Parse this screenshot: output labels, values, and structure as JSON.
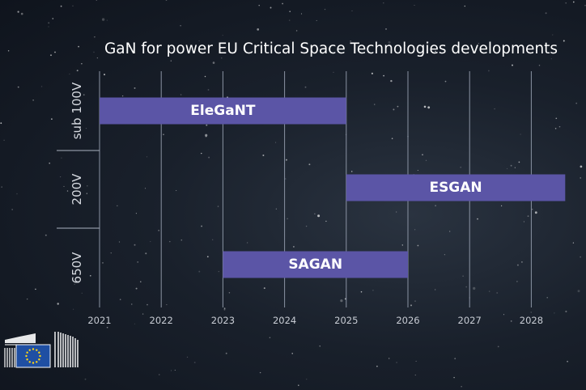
{
  "chart_data": {
    "type": "gantt",
    "title": "GaN for power EU Critical Space Technologies developments",
    "x_ticks": [
      "2021",
      "2022",
      "2023",
      "2024",
      "2025",
      "2026",
      "2027",
      "2028"
    ],
    "xlim": [
      2021,
      2028.55
    ],
    "rows": [
      "sub 100V",
      "200V",
      "650V"
    ],
    "bars": [
      {
        "label": "EleGaNT",
        "row": "sub 100V",
        "start": 2021,
        "end": 2025
      },
      {
        "label": "ESGAN",
        "row": "200V",
        "start": 2025,
        "end": 2028.55
      },
      {
        "label": "SAGAN",
        "row": "650V",
        "start": 2023,
        "end": 2026
      }
    ],
    "grid": true,
    "bar_color": "#5b55a6"
  },
  "logo": {
    "name": "eu-flag-logo"
  }
}
